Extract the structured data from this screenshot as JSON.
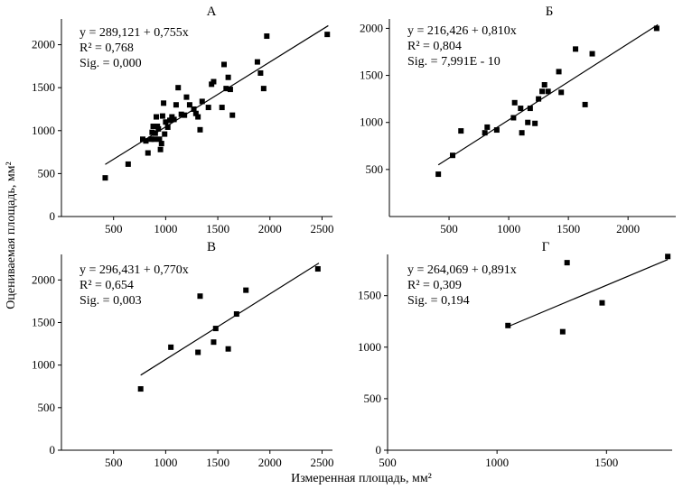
{
  "figure": {
    "ylabel": "Оцениваемая площадь, мм²",
    "xlabel": "Измеренная площадь, мм²"
  },
  "chart_data": [
    {
      "type": "scatter",
      "panel": "А",
      "xlim": [
        0,
        2600
      ],
      "ylim": [
        0,
        2300
      ],
      "xticks": [
        500,
        1000,
        1500,
        2000,
        2500
      ],
      "yticks": [
        0,
        500,
        1000,
        1500,
        2000
      ],
      "xtick_labels": [
        "500",
        "1000",
        "1500",
        "2000",
        "2500"
      ],
      "ytick_labels": [
        "0",
        "500",
        "1000",
        "1500",
        "2000"
      ],
      "fit": {
        "intercept": 289.121,
        "slope": 0.755,
        "x_range": [
          420,
          2560
        ]
      },
      "annotations": [
        "y = 289,121 + 0,755x",
        "R² = 0,768",
        "Sig. = 0,000"
      ],
      "points": [
        [
          420,
          450
        ],
        [
          640,
          610
        ],
        [
          780,
          900
        ],
        [
          810,
          880
        ],
        [
          830,
          740
        ],
        [
          860,
          900
        ],
        [
          870,
          980
        ],
        [
          880,
          1050
        ],
        [
          890,
          900
        ],
        [
          900,
          970
        ],
        [
          910,
          1160
        ],
        [
          920,
          1050
        ],
        [
          930,
          1020
        ],
        [
          940,
          900
        ],
        [
          950,
          780
        ],
        [
          960,
          850
        ],
        [
          970,
          1170
        ],
        [
          980,
          1320
        ],
        [
          990,
          960
        ],
        [
          1000,
          1100
        ],
        [
          1020,
          1040
        ],
        [
          1040,
          1120
        ],
        [
          1060,
          1160
        ],
        [
          1080,
          1130
        ],
        [
          1100,
          1300
        ],
        [
          1120,
          1500
        ],
        [
          1150,
          1190
        ],
        [
          1180,
          1180
        ],
        [
          1200,
          1390
        ],
        [
          1230,
          1300
        ],
        [
          1270,
          1250
        ],
        [
          1290,
          1200
        ],
        [
          1310,
          1160
        ],
        [
          1330,
          1010
        ],
        [
          1350,
          1340
        ],
        [
          1410,
          1270
        ],
        [
          1440,
          1540
        ],
        [
          1460,
          1570
        ],
        [
          1540,
          1270
        ],
        [
          1560,
          1770
        ],
        [
          1580,
          1490
        ],
        [
          1600,
          1620
        ],
        [
          1620,
          1480
        ],
        [
          1640,
          1180
        ],
        [
          1880,
          1800
        ],
        [
          1910,
          1670
        ],
        [
          1940,
          1490
        ],
        [
          1970,
          2100
        ],
        [
          2550,
          2120
        ]
      ]
    },
    {
      "type": "scatter",
      "panel": "Б",
      "xlim": [
        0,
        2400
      ],
      "ylim": [
        0,
        2100
      ],
      "xticks": [
        500,
        1000,
        1500,
        2000
      ],
      "yticks": [
        500,
        1000,
        1500,
        2000
      ],
      "xtick_labels": [
        "500",
        "1000",
        "1500",
        "2000"
      ],
      "ytick_labels": [
        "500",
        "1000",
        "1500",
        "2000"
      ],
      "fit": {
        "intercept": 216.426,
        "slope": 0.81,
        "x_range": [
          410,
          2250
        ]
      },
      "annotations": [
        "y = 216,426 + 0,810x",
        "R² = 0,804",
        "Sig. = 7,991E - 10"
      ],
      "points": [
        [
          410,
          450
        ],
        [
          530,
          650
        ],
        [
          600,
          910
        ],
        [
          800,
          890
        ],
        [
          820,
          950
        ],
        [
          900,
          920
        ],
        [
          1040,
          1050
        ],
        [
          1050,
          1210
        ],
        [
          1100,
          1150
        ],
        [
          1110,
          890
        ],
        [
          1160,
          1000
        ],
        [
          1180,
          1150
        ],
        [
          1220,
          990
        ],
        [
          1250,
          1250
        ],
        [
          1280,
          1330
        ],
        [
          1300,
          1400
        ],
        [
          1330,
          1330
        ],
        [
          1420,
          1540
        ],
        [
          1440,
          1320
        ],
        [
          1560,
          1780
        ],
        [
          1640,
          1190
        ],
        [
          1700,
          1730
        ],
        [
          2240,
          2000
        ]
      ]
    },
    {
      "type": "scatter",
      "panel": "В",
      "xlim": [
        0,
        2600
      ],
      "ylim": [
        0,
        2300
      ],
      "xticks": [
        500,
        1000,
        1500,
        2000,
        2500
      ],
      "yticks": [
        0,
        500,
        1000,
        1500,
        2000
      ],
      "xtick_labels": [
        "500",
        "1000",
        "1500",
        "2000",
        "2500"
      ],
      "ytick_labels": [
        "0",
        "500",
        "1000",
        "1500",
        "2000"
      ],
      "fit": {
        "intercept": 296.431,
        "slope": 0.77,
        "x_range": [
          760,
          2470
        ]
      },
      "annotations": [
        "y = 296,431 + 0,770x",
        "R² = 0,654",
        "Sig. = 0,003"
      ],
      "points": [
        [
          760,
          720
        ],
        [
          1050,
          1210
        ],
        [
          1310,
          1150
        ],
        [
          1330,
          1810
        ],
        [
          1460,
          1270
        ],
        [
          1480,
          1430
        ],
        [
          1600,
          1190
        ],
        [
          1680,
          1600
        ],
        [
          1770,
          1880
        ],
        [
          2460,
          2130
        ]
      ]
    },
    {
      "type": "scatter",
      "panel": "Г",
      "xlim": [
        500,
        1800
      ],
      "ylim": [
        0,
        1900
      ],
      "xticks": [
        500,
        1000,
        1500
      ],
      "yticks": [
        0,
        500,
        1000,
        1500
      ],
      "xtick_labels": [
        "500",
        "1000",
        "1500"
      ],
      "ytick_labels": [
        "0",
        "500",
        "1000",
        "1500"
      ],
      "fit": {
        "intercept": 264.069,
        "slope": 0.891,
        "x_range": [
          1050,
          1780
        ]
      },
      "annotations": [
        "y = 264,069 + 0,891x",
        "R² = 0,309",
        "Sig. = 0,194"
      ],
      "points": [
        [
          1050,
          1210
        ],
        [
          1300,
          1150
        ],
        [
          1320,
          1820
        ],
        [
          1480,
          1430
        ],
        [
          1780,
          1880
        ]
      ]
    }
  ]
}
